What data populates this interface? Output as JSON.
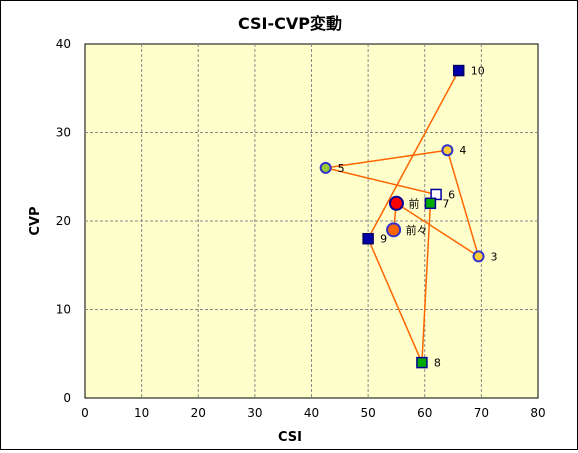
{
  "chart_data": {
    "type": "scatter",
    "title": "CSI-CVP変動",
    "xlabel": "CSI",
    "ylabel": "CVP",
    "xlim": [
      0,
      80
    ],
    "ylim": [
      0,
      40
    ],
    "x_ticks": [
      "0",
      "10",
      "20",
      "30",
      "40",
      "50",
      "60",
      "70",
      "80"
    ],
    "y_ticks": [
      "0",
      "10",
      "20",
      "30",
      "40"
    ],
    "grid": true,
    "plot_background": "#ffffcc",
    "line_color": "#ff6600",
    "path_order": [
      "前々",
      "前",
      "3",
      "4",
      "5",
      "6",
      "7",
      "8",
      "9",
      "10"
    ],
    "points": [
      {
        "label": "前々",
        "x": 54.5,
        "y": 19,
        "shape": "circle-large",
        "fill": "#ff6600",
        "stroke": "#3333cc"
      },
      {
        "label": "前",
        "x": 55,
        "y": 22,
        "shape": "circle-large",
        "fill": "#ff0000",
        "stroke": "#000099"
      },
      {
        "label": "3",
        "x": 69.5,
        "y": 16,
        "shape": "circle",
        "fill": "#ffcc33",
        "stroke": "#3333cc"
      },
      {
        "label": "4",
        "x": 64,
        "y": 28,
        "shape": "circle",
        "fill": "#ffcc33",
        "stroke": "#3333cc"
      },
      {
        "label": "5",
        "x": 42.5,
        "y": 26,
        "shape": "circle",
        "fill": "#99cc33",
        "stroke": "#3333cc"
      },
      {
        "label": "6",
        "x": 62,
        "y": 23,
        "shape": "square",
        "fill": "#ffffff",
        "stroke": "#000099"
      },
      {
        "label": "7",
        "x": 61,
        "y": 22,
        "shape": "square",
        "fill": "#00aa00",
        "stroke": "#000099"
      },
      {
        "label": "8",
        "x": 59.5,
        "y": 4,
        "shape": "square",
        "fill": "#00aa00",
        "stroke": "#000099"
      },
      {
        "label": "9",
        "x": 50,
        "y": 18,
        "shape": "square",
        "fill": "#0000aa",
        "stroke": "#000066"
      },
      {
        "label": "10",
        "x": 66,
        "y": 37,
        "shape": "square",
        "fill": "#0000aa",
        "stroke": "#000066"
      }
    ]
  }
}
